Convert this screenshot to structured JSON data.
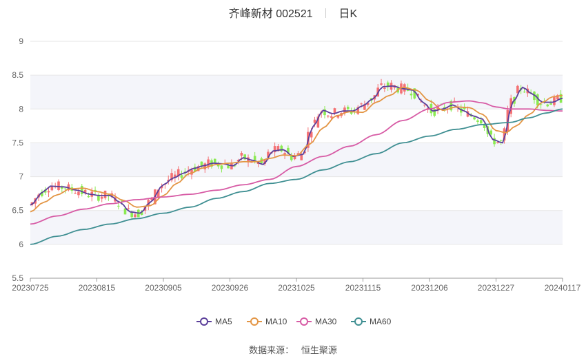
{
  "header": {
    "stock": "齐峰新材 002521",
    "period": "日K"
  },
  "footer": {
    "source_label": "数据来源：",
    "source_name": "恒生聚源"
  },
  "colors": {
    "up": "#f47174",
    "down": "#8bea52",
    "MA5": "#5b3f9a",
    "MA10": "#e39544",
    "MA30": "#d75ba5",
    "MA60": "#3f8f92",
    "band": "#f4f5fa",
    "grid": "#e6e6e6"
  },
  "chart_data": {
    "type": "candlestick",
    "ylim": [
      5.5,
      9
    ],
    "yticks": [
      "9",
      "8.5",
      "8",
      "7.5",
      "7",
      "6.5",
      "6",
      "5.5"
    ],
    "xticks": [
      "20230725",
      "20230815",
      "20230905",
      "20230926",
      "20231025",
      "20231115",
      "20231206",
      "20231227",
      "20240117"
    ],
    "grid": true,
    "legend_position": "bottom-center",
    "series": [
      {
        "name": "MA5",
        "anchors": [
          [
            0,
            6.58
          ],
          [
            4,
            6.78
          ],
          [
            6,
            6.86
          ],
          [
            10,
            6.85
          ],
          [
            14,
            6.8
          ],
          [
            18,
            6.74
          ],
          [
            21,
            6.72
          ],
          [
            24,
            6.72
          ],
          [
            27,
            6.62
          ],
          [
            30,
            6.48
          ],
          [
            33,
            6.46
          ],
          [
            36,
            6.62
          ],
          [
            40,
            6.88
          ],
          [
            43,
            6.98
          ],
          [
            46,
            7.05
          ],
          [
            49,
            7.12
          ],
          [
            52,
            7.16
          ],
          [
            55,
            7.2
          ],
          [
            58,
            7.19
          ],
          [
            61,
            7.16
          ],
          [
            64,
            7.28
          ],
          [
            67,
            7.24
          ],
          [
            70,
            7.18
          ],
          [
            73,
            7.38
          ],
          [
            76,
            7.4
          ],
          [
            79,
            7.3
          ],
          [
            82,
            7.33
          ],
          [
            85,
            7.74
          ],
          [
            88,
            7.98
          ],
          [
            91,
            7.93
          ],
          [
            94,
            7.97
          ],
          [
            97,
            7.97
          ],
          [
            100,
            8.05
          ],
          [
            103,
            8.15
          ],
          [
            106,
            8.33
          ],
          [
            109,
            8.34
          ],
          [
            112,
            8.3
          ],
          [
            115,
            8.28
          ],
          [
            118,
            8.1
          ],
          [
            121,
            7.97
          ],
          [
            124,
            8.0
          ],
          [
            127,
            8.06
          ],
          [
            130,
            7.98
          ],
          [
            133,
            7.9
          ],
          [
            136,
            7.85
          ],
          [
            139,
            7.55
          ],
          [
            142,
            7.5
          ],
          [
            145,
            8.1
          ],
          [
            148,
            8.32
          ],
          [
            151,
            8.22
          ],
          [
            154,
            8.1
          ],
          [
            157,
            8.1
          ],
          [
            160,
            8.16
          ]
        ]
      },
      {
        "name": "MA10",
        "anchors": [
          [
            0,
            6.48
          ],
          [
            4,
            6.62
          ],
          [
            8,
            6.73
          ],
          [
            12,
            6.82
          ],
          [
            16,
            6.83
          ],
          [
            20,
            6.78
          ],
          [
            24,
            6.74
          ],
          [
            28,
            6.65
          ],
          [
            32,
            6.55
          ],
          [
            36,
            6.57
          ],
          [
            40,
            6.72
          ],
          [
            44,
            6.9
          ],
          [
            48,
            7.05
          ],
          [
            52,
            7.13
          ],
          [
            56,
            7.18
          ],
          [
            60,
            7.2
          ],
          [
            64,
            7.22
          ],
          [
            68,
            7.22
          ],
          [
            72,
            7.27
          ],
          [
            76,
            7.32
          ],
          [
            80,
            7.31
          ],
          [
            84,
            7.48
          ],
          [
            88,
            7.72
          ],
          [
            92,
            7.9
          ],
          [
            96,
            7.96
          ],
          [
            100,
            7.95
          ],
          [
            104,
            8.1
          ],
          [
            108,
            8.2
          ],
          [
            112,
            8.32
          ],
          [
            116,
            8.28
          ],
          [
            120,
            8.12
          ],
          [
            124,
            7.98
          ],
          [
            128,
            8.03
          ],
          [
            132,
            8.02
          ],
          [
            136,
            7.92
          ],
          [
            140,
            7.68
          ],
          [
            143,
            7.65
          ],
          [
            146,
            7.75
          ],
          [
            150,
            7.92
          ],
          [
            154,
            8.1
          ],
          [
            157,
            8.18
          ],
          [
            160,
            8.2
          ]
        ]
      },
      {
        "name": "MA30",
        "anchors": [
          [
            0,
            6.3
          ],
          [
            8,
            6.42
          ],
          [
            16,
            6.52
          ],
          [
            24,
            6.6
          ],
          [
            32,
            6.66
          ],
          [
            40,
            6.7
          ],
          [
            48,
            6.74
          ],
          [
            56,
            6.8
          ],
          [
            64,
            6.88
          ],
          [
            72,
            6.96
          ],
          [
            80,
            7.15
          ],
          [
            88,
            7.3
          ],
          [
            96,
            7.45
          ],
          [
            104,
            7.62
          ],
          [
            112,
            7.83
          ],
          [
            120,
            8.0
          ],
          [
            126,
            8.1
          ],
          [
            132,
            8.12
          ],
          [
            136,
            8.09
          ],
          [
            140,
            8.03
          ],
          [
            144,
            8.0
          ],
          [
            150,
            8.0
          ],
          [
            155,
            7.98
          ],
          [
            160,
            7.97
          ]
        ]
      },
      {
        "name": "MA60",
        "anchors": [
          [
            0,
            6.0
          ],
          [
            8,
            6.12
          ],
          [
            16,
            6.22
          ],
          [
            24,
            6.3
          ],
          [
            32,
            6.38
          ],
          [
            40,
            6.46
          ],
          [
            48,
            6.55
          ],
          [
            56,
            6.68
          ],
          [
            64,
            6.78
          ],
          [
            72,
            6.9
          ],
          [
            80,
            6.96
          ],
          [
            88,
            7.1
          ],
          [
            96,
            7.22
          ],
          [
            104,
            7.34
          ],
          [
            112,
            7.5
          ],
          [
            120,
            7.6
          ],
          [
            128,
            7.7
          ],
          [
            136,
            7.77
          ],
          [
            144,
            7.8
          ],
          [
            150,
            7.87
          ],
          [
            155,
            7.94
          ],
          [
            160,
            8.0
          ]
        ]
      }
    ]
  }
}
